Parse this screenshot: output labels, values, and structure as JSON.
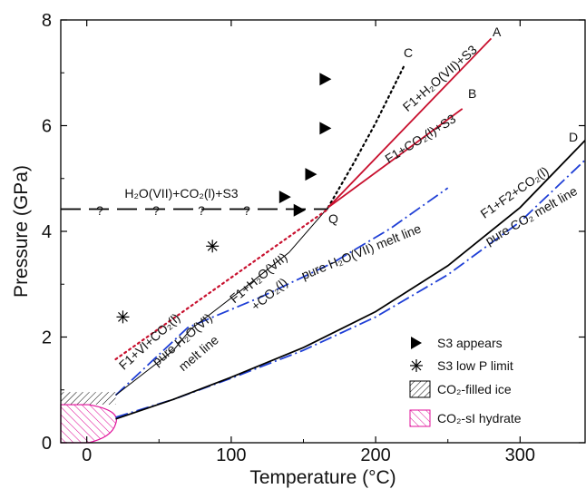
{
  "chart_data": {
    "type": "line",
    "xlabel": "Temperature (°C)",
    "ylabel": "Pressure (GPa)",
    "xlim": [
      -18,
      345
    ],
    "ylim": [
      0,
      8
    ],
    "x_ticks": [
      0,
      100,
      200,
      300
    ],
    "y_ticks": [
      0,
      2,
      4,
      6,
      8
    ],
    "grid": false,
    "legend_position": "bottom-right",
    "colors": {
      "red": "#c8102e",
      "blue": "#1f3fd6",
      "black": "#000000",
      "hatch_pink": "#e0119a"
    },
    "series": [
      {
        "name": "pure CO2 melt line",
        "style": "dash-dot",
        "color": "#1f3fd6",
        "x": [
          20,
          60,
          100,
          150,
          200,
          250,
          300,
          345
        ],
        "y": [
          0.48,
          0.82,
          1.22,
          1.75,
          2.38,
          3.18,
          4.18,
          5.35
        ]
      },
      {
        "name": "pure H2O(VII) melt line",
        "style": "dash-dot",
        "color": "#1f3fd6",
        "x": [
          20,
          70,
          120,
          170,
          210,
          250
        ],
        "y": [
          0.9,
          2.18,
          2.75,
          3.4,
          4.05,
          4.82
        ]
      },
      {
        "name": "F1+F2+CO2(l) (D)",
        "style": "solid",
        "color": "#000000",
        "x": [
          20,
          60,
          100,
          150,
          200,
          250,
          300,
          345
        ],
        "y": [
          0.45,
          0.82,
          1.24,
          1.8,
          2.48,
          3.35,
          4.45,
          5.72
        ]
      },
      {
        "name": "F1+VI+CO2(l) / F1+H2O(VII)+CO2(l)",
        "style": "solid-thin",
        "color": "#000000",
        "x": [
          20,
          60,
          72,
          110,
          140,
          167
        ],
        "y": [
          0.9,
          1.75,
          2.15,
          2.95,
          3.6,
          4.45
        ]
      },
      {
        "name": "H2O(VII)+CO2(l)+S3",
        "style": "long-dash",
        "color": "#000000",
        "x": [
          -18,
          167
        ],
        "y": [
          4.42,
          4.42
        ]
      },
      {
        "name": "C",
        "style": "dotted",
        "color": "#000000",
        "x": [
          167,
          185,
          200,
          220
        ],
        "y": [
          4.45,
          5.3,
          6.05,
          7.15
        ]
      },
      {
        "name": "low-P extension",
        "style": "dotted",
        "color": "#c8102e",
        "x": [
          20,
          167
        ],
        "y": [
          1.58,
          4.42
        ]
      },
      {
        "name": "F1+H2O(VII)+S3 (A)",
        "style": "solid",
        "color": "#c8102e",
        "x": [
          167,
          280
        ],
        "y": [
          4.45,
          7.65
        ]
      },
      {
        "name": "F1+CO2(l)+S3 (B)",
        "style": "solid",
        "color": "#c8102e",
        "x": [
          167,
          260
        ],
        "y": [
          4.45,
          6.32
        ]
      }
    ],
    "points": {
      "S3 appears": [
        [
          165,
          6.88
        ],
        [
          165,
          5.95
        ],
        [
          155,
          5.08
        ],
        [
          137,
          4.65
        ],
        [
          147,
          4.4
        ]
      ],
      "S3 low P limit": [
        [
          25,
          2.38
        ],
        [
          87,
          3.72
        ]
      ]
    },
    "regions": {
      "CO2-filled ice": {
        "x": [
          -18,
          20
        ],
        "y": [
          0.72,
          0.96
        ]
      },
      "CO2-sI hydrate": {
        "x": [
          -18,
          20
        ],
        "y": [
          0,
          0.72
        ]
      }
    },
    "annotations": {
      "point_labels": {
        "A": "A",
        "B": "B",
        "C": "C",
        "D": "D",
        "Q": "Q"
      },
      "question_mark": "?",
      "boundary_top": "H₂O(VII)+CO₂(l)+S3",
      "label_A": "F1+H₂O(VII)+S3",
      "label_B": "F1+CO₂(l)+S3",
      "label_D": "F1+F2+CO₂(l)",
      "label_co2_melt": "pure CO₂ melt line",
      "label_h2o7_melt": "pure H₂O(VII) melt line",
      "label_f1_h2o7_line1": "F1+H₂O(VII)",
      "label_f1_h2o7_line2": "+CO₂(l)",
      "label_f1_vi": "F1+VI+CO₂(l)",
      "label_h2o6_line1": "pure H₂O(VI)",
      "label_h2o6_line2": "melt line"
    },
    "legend": {
      "s3_appears": "S3 appears",
      "s3_low_p": "S3 low P limit",
      "co2_filled_ice": "CO₂-filled ice",
      "co2_si_hydrate": "CO₂-sI hydrate"
    }
  }
}
